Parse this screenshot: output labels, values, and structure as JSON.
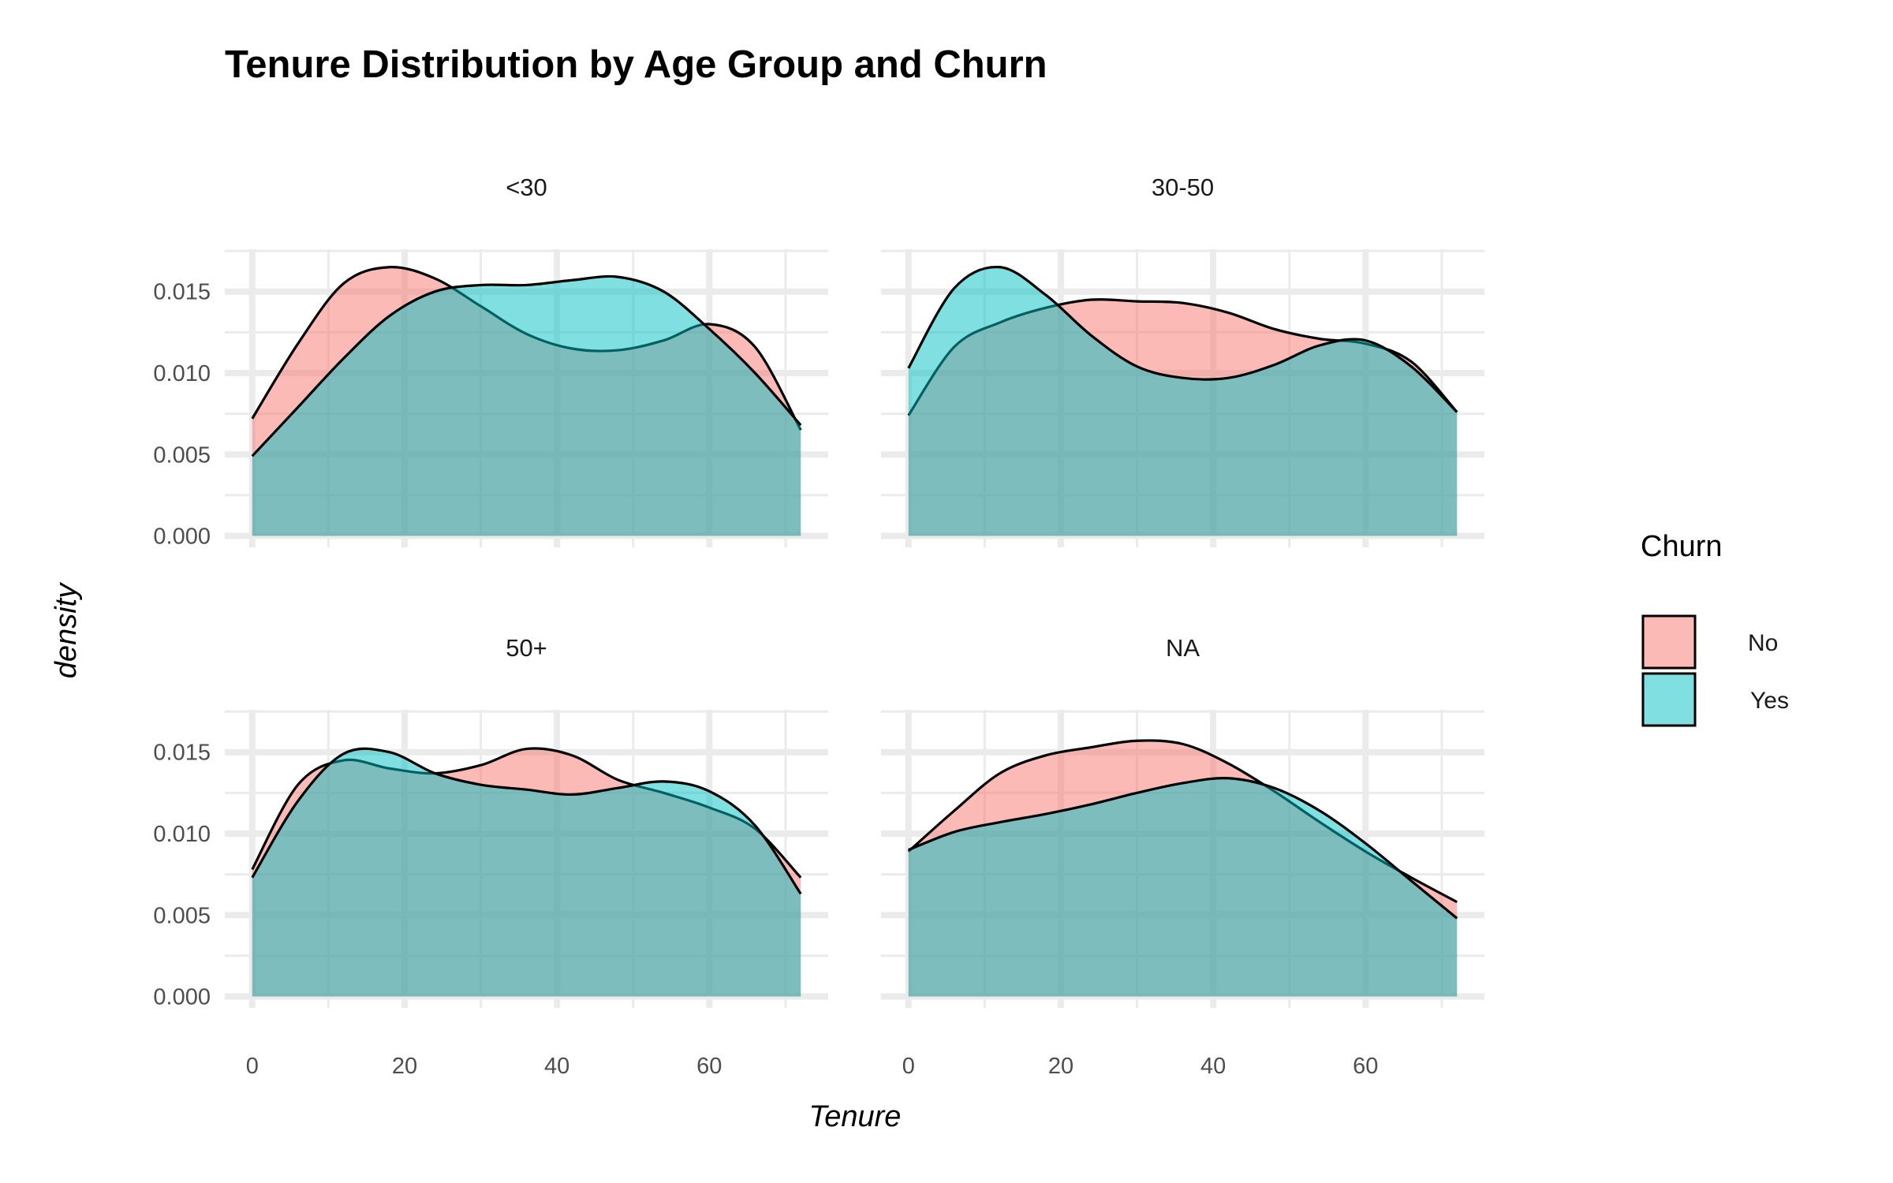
{
  "chart_data": {
    "type": "area",
    "title": "Tenure Distribution by Age Group and Churn",
    "xlabel": "Tenure",
    "ylabel": "density",
    "xlim": [
      -3.6,
      75.6
    ],
    "ylim": [
      -0.0007,
      0.0176
    ],
    "x_ticks": [
      0,
      20,
      40,
      60
    ],
    "x_tick_labels": [
      "0",
      "20",
      "40",
      "60"
    ],
    "y_ticks": [
      0,
      0.005,
      0.01,
      0.015
    ],
    "y_tick_labels": [
      "0.000",
      "0.005",
      "0.010",
      "0.015"
    ],
    "grid": true,
    "legend": {
      "title": "Churn",
      "position": "right",
      "entries": [
        {
          "label": "No",
          "color": "#F8766D"
        },
        {
          "label": "Yes",
          "color": "#00BFC4"
        }
      ]
    },
    "x": [
      0,
      6,
      12,
      18,
      24,
      30,
      36,
      42,
      48,
      54,
      60,
      66,
      72
    ],
    "panels": [
      {
        "label": "<30",
        "series": [
          {
            "name": "No",
            "values": [
              0.0072,
              0.0118,
              0.0155,
              0.0165,
              0.0158,
              0.0141,
              0.0124,
              0.0115,
              0.0114,
              0.012,
              0.013,
              0.0116,
              0.0065
            ]
          },
          {
            "name": "Yes",
            "values": [
              0.0049,
              0.0079,
              0.0109,
              0.0135,
              0.015,
              0.0154,
              0.0154,
              0.0157,
              0.0159,
              0.015,
              0.0127,
              0.01,
              0.0068
            ]
          }
        ]
      },
      {
        "label": "30-50",
        "series": [
          {
            "name": "No",
            "values": [
              0.0074,
              0.0116,
              0.0131,
              0.014,
              0.0145,
              0.0144,
              0.0143,
              0.0137,
              0.0127,
              0.0121,
              0.0118,
              0.0107,
              0.0076
            ]
          },
          {
            "name": "Yes",
            "values": [
              0.0103,
              0.0152,
              0.0165,
              0.0148,
              0.0123,
              0.0104,
              0.0097,
              0.0097,
              0.0105,
              0.0117,
              0.012,
              0.0104,
              0.0076
            ]
          }
        ]
      },
      {
        "label": "50+",
        "series": [
          {
            "name": "No",
            "values": [
              0.0078,
              0.013,
              0.0145,
              0.014,
              0.0137,
              0.0142,
              0.0152,
              0.0148,
              0.0133,
              0.0125,
              0.0116,
              0.0103,
              0.0073
            ]
          },
          {
            "name": "Yes",
            "values": [
              0.0073,
              0.012,
              0.0149,
              0.015,
              0.0137,
              0.013,
              0.0127,
              0.0124,
              0.0128,
              0.0132,
              0.0126,
              0.0105,
              0.0063
            ]
          }
        ]
      },
      {
        "label": "NA",
        "series": [
          {
            "name": "No",
            "values": [
              0.0089,
              0.0114,
              0.0137,
              0.0148,
              0.0153,
              0.0157,
              0.0155,
              0.0143,
              0.0126,
              0.0107,
              0.0089,
              0.0073,
              0.0058
            ]
          },
          {
            "name": "Yes",
            "values": [
              0.009,
              0.0101,
              0.0107,
              0.0112,
              0.0118,
              0.0125,
              0.0131,
              0.0134,
              0.0128,
              0.0114,
              0.0094,
              0.0071,
              0.0048
            ]
          }
        ]
      }
    ]
  }
}
